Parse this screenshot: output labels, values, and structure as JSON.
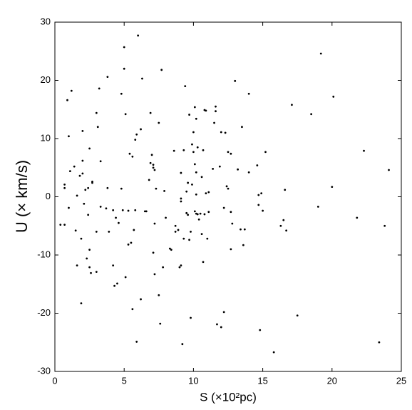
{
  "chart_data": {
    "type": "scatter",
    "x_label": "S (×10²pc)",
    "y_label": "U (× km/s)",
    "color": "#000000",
    "xlim": [
      0,
      25
    ],
    "xticks": [
      0,
      5,
      10,
      15,
      20,
      25
    ],
    "ylim": [
      -30,
      30
    ],
    "yticks": [
      -30,
      -20,
      -10,
      0,
      10,
      20,
      30
    ],
    "x": [
      0.4,
      0.7,
      0.7,
      0.7,
      0.9,
      1.0,
      1.0,
      1.1,
      1.2,
      1.4,
      1.5,
      1.6,
      1.6,
      1.8,
      1.9,
      1.9,
      2.0,
      2.0,
      2.0,
      2.1,
      2.2,
      2.3,
      2.4,
      2.4,
      2.5,
      2.5,
      2.5,
      2.6,
      2.7,
      2.7,
      3.0,
      3.0,
      3.0,
      3.1,
      3.2,
      3.3,
      3.3,
      3.7,
      3.8,
      3.8,
      3.9,
      4.2,
      4.2,
      4.3,
      4.4,
      4.5,
      4.6,
      4.8,
      4.8,
      4.9,
      5.0,
      5.0,
      5.1,
      5.1,
      5.3,
      5.3,
      5.4,
      5.5,
      5.6,
      5.6,
      5.7,
      5.8,
      5.8,
      5.9,
      5.9,
      6.0,
      6.2,
      6.2,
      6.3,
      6.5,
      6.6,
      6.8,
      6.9,
      6.9,
      7.0,
      7.1,
      7.1,
      7.1,
      7.2,
      7.2,
      7.2,
      7.3,
      7.5,
      7.5,
      7.6,
      7.7,
      7.8,
      7.9,
      8.0,
      8.3,
      8.4,
      8.6,
      8.7,
      8.7,
      8.9,
      9.0,
      9.1,
      9.1,
      9.1,
      9.1,
      9.2,
      9.3,
      9.3,
      9.4,
      9.5,
      9.5,
      9.6,
      9.6,
      9.7,
      9.7,
      9.8,
      9.8,
      9.9,
      9.9,
      10.0,
      10.0,
      10.1,
      10.1,
      10.2,
      10.2,
      10.2,
      10.1,
      10.2,
      10.3,
      10.3,
      10.4,
      10.5,
      10.6,
      10.6,
      10.7,
      10.7,
      10.8,
      10.8,
      10.9,
      10.9,
      11.0,
      11.1,
      11.1,
      11.4,
      11.5,
      11.6,
      11.6,
      11.7,
      11.9,
      12.0,
      12.0,
      12.2,
      12.2,
      12.3,
      12.4,
      12.5,
      12.5,
      12.7,
      12.7,
      12.7,
      12.8,
      13.0,
      13.2,
      13.4,
      13.5,
      13.6,
      13.7,
      14.0,
      14.0,
      14.6,
      14.7,
      14.7,
      14.8,
      14.9,
      15.0,
      15.2,
      15.8,
      16.3,
      16.5,
      16.6,
      16.7,
      17.1,
      17.5,
      19.0,
      18.5,
      19.2,
      20.0,
      20.1,
      21.8,
      22.3,
      23.8,
      24.1,
      23.4
    ],
    "y": [
      -4.8,
      2.1,
      1.5,
      -4.8,
      16.6,
      10.4,
      -1.9,
      4.4,
      18.2,
      5.2,
      -5.8,
      0.2,
      -11.8,
      3.6,
      -7.2,
      -18.3,
      11.3,
      4.0,
      6.2,
      -1.2,
      1.2,
      -10.6,
      1.5,
      -3.1,
      8.3,
      -12.1,
      -9.1,
      -13.1,
      2.4,
      2.6,
      -6.0,
      14.4,
      -12.9,
      12.0,
      18.6,
      -1.7,
      6.1,
      -2.0,
      20.6,
      1.5,
      -6.0,
      -11.8,
      -2.3,
      -15.3,
      -3.6,
      -14.9,
      -4.5,
      1.4,
      17.7,
      -2.3,
      25.7,
      22.0,
      14.2,
      -13.8,
      -2.4,
      -8.2,
      7.4,
      -7.9,
      -19.3,
      6.9,
      -5.7,
      -2.3,
      9.8,
      10.7,
      -24.9,
      27.7,
      11.6,
      -17.6,
      20.3,
      -2.5,
      -2.5,
      2.9,
      14.4,
      5.8,
      7.2,
      5.0,
      5.5,
      -9.6,
      -4.6,
      -13.3,
      4.6,
      1.4,
      12.7,
      -16.9,
      -21.8,
      21.8,
      -12.1,
      1.0,
      -3.6,
      -8.9,
      -9.1,
      7.9,
      -6.0,
      -5.0,
      -5.7,
      -12.1,
      4.1,
      -11.8,
      -0.8,
      -0.3,
      -25.3,
      -7.2,
      8.0,
      19.0,
      -2.8,
      0.9,
      -3.1,
      2.4,
      14.1,
      -7.4,
      -20.8,
      -6.0,
      9.0,
      2.1,
      11.1,
      7.7,
      15.4,
      5.6,
      13.4,
      0.4,
      4.2,
      -2.5,
      -2.9,
      8.5,
      -3.0,
      -3.9,
      -2.9,
      3.4,
      -6.4,
      8.0,
      -11.2,
      -3.0,
      14.9,
      14.8,
      0.6,
      -7.2,
      0.8,
      -2.6,
      4.8,
      12.7,
      15.5,
      14.7,
      -21.9,
      5.2,
      -22.4,
      11.1,
      -1.9,
      -19.8,
      11.0,
      1.8,
      7.7,
      1.4,
      7.4,
      -2.6,
      -9.0,
      -4.6,
      19.9,
      4.7,
      -5.6,
      12.0,
      -8.3,
      -5.6,
      17.7,
      4.2,
      5.4,
      -1.4,
      0.3,
      -22.9,
      0.6,
      -2.4,
      7.7,
      -26.7,
      -5.0,
      -4.0,
      1.2,
      -5.8,
      15.8,
      -20.4,
      -1.7,
      14.2,
      24.6,
      1.7,
      17.2,
      -3.6,
      7.9,
      -5.0,
      4.6,
      -25.0
    ]
  }
}
